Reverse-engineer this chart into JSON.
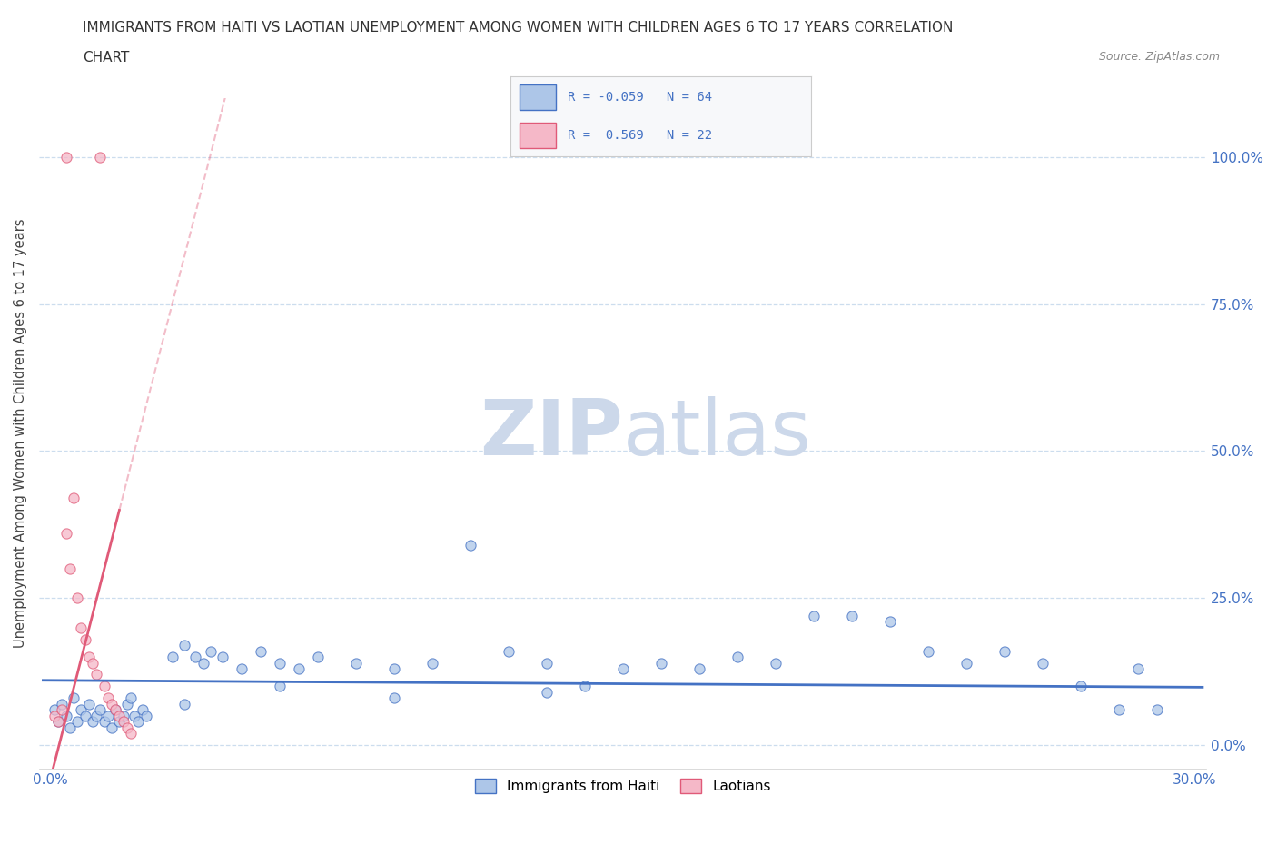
{
  "title_line1": "IMMIGRANTS FROM HAITI VS LAOTIAN UNEMPLOYMENT AMONG WOMEN WITH CHILDREN AGES 6 TO 17 YEARS CORRELATION",
  "title_line2": "CHART",
  "source_text": "Source: ZipAtlas.com",
  "ylabel": "Unemployment Among Women with Children Ages 6 to 17 years",
  "haiti_color": "#adc6e8",
  "laotian_color": "#f5b8c8",
  "haiti_line_color": "#4472c4",
  "laotian_line_color": "#e05a78",
  "laotian_dash_color": "#e8a0b0",
  "haiti_R": -0.059,
  "haiti_N": 64,
  "laotian_R": 0.569,
  "laotian_N": 22,
  "watermark_zip": "ZIP",
  "watermark_atlas": "atlas",
  "watermark_color": "#ccd8ea",
  "grid_color": "#ccddee",
  "ytick_color": "#4472c4",
  "xtick_color": "#4472c4"
}
